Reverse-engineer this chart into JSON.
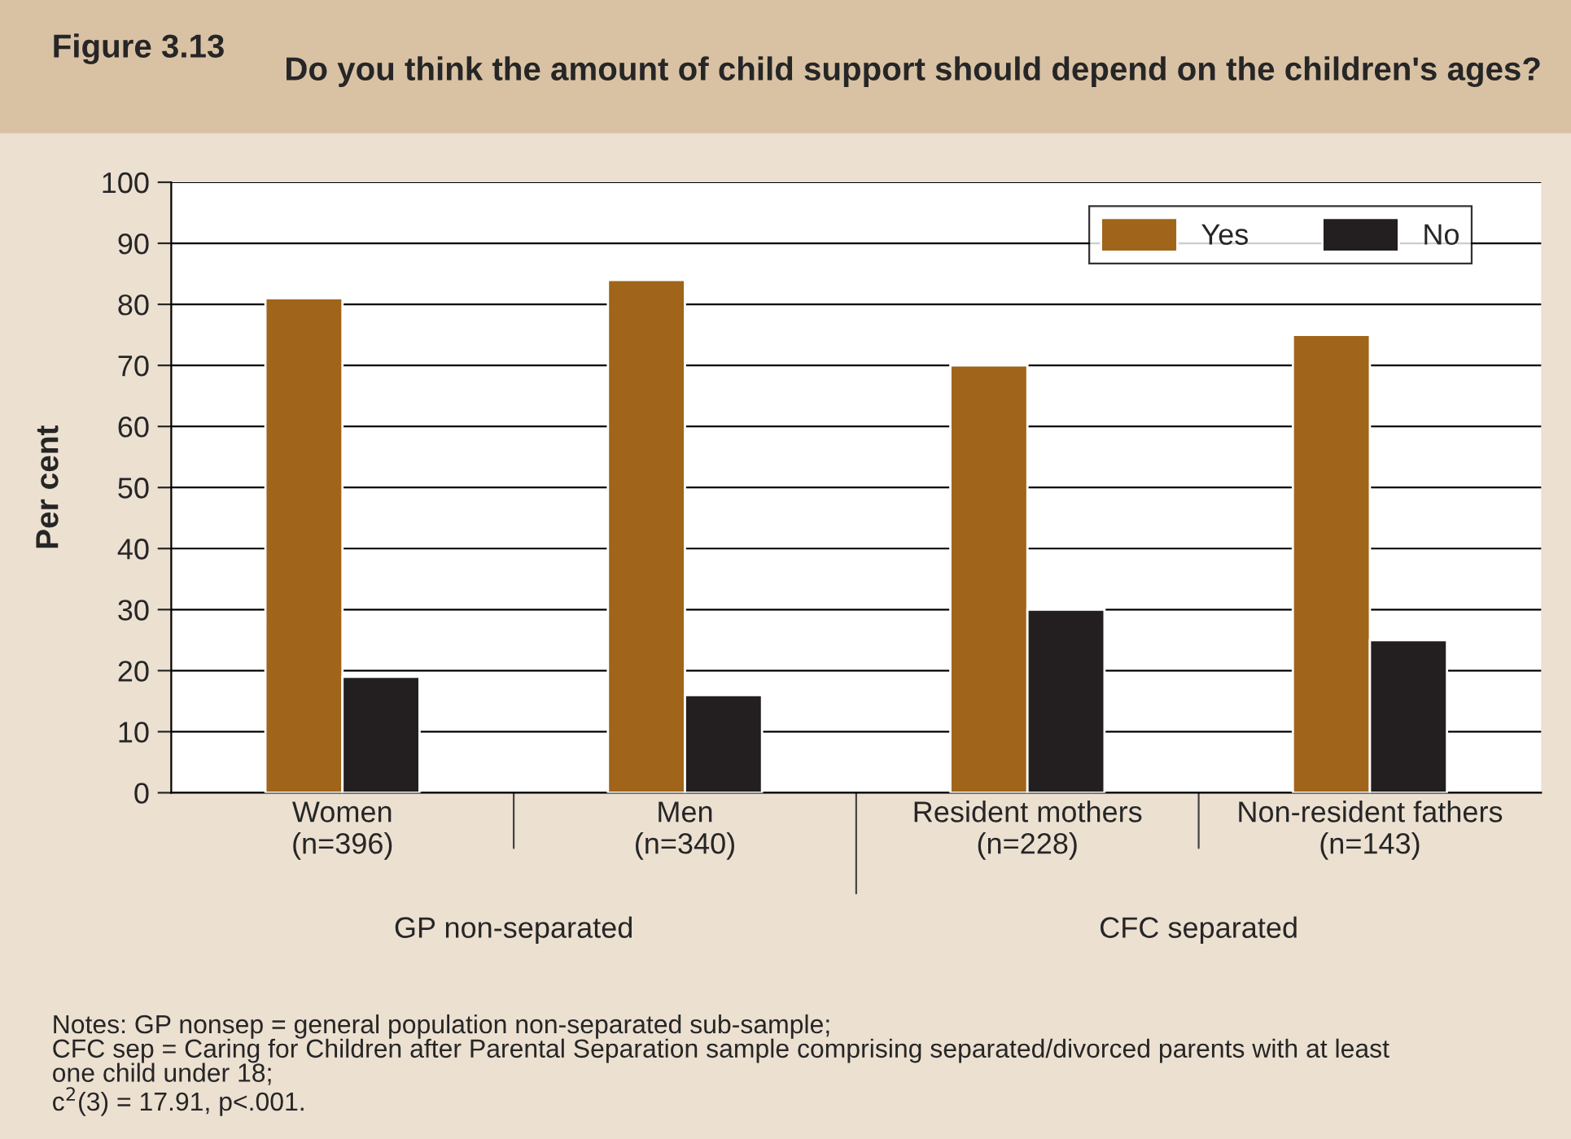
{
  "chart_data": {
    "type": "bar",
    "title": "Figure 3.13",
    "subtitle": "Do you think the amount of child support should depend on the children's ages?",
    "ylabel": "Per cent",
    "categories": [
      "Women\n(n=396)",
      "Men\n(n=340)",
      "Resident mothers\n(n=228)",
      "Non-resident fathers\n(n=143)"
    ],
    "series": [
      {
        "name": "Yes",
        "color": "#a0651a",
        "values": [
          81,
          84,
          70,
          75
        ]
      },
      {
        "name": "No",
        "color": "#231f20",
        "values": [
          19,
          16,
          30,
          25
        ]
      }
    ],
    "ylim": [
      0,
      100
    ],
    "yticks": [
      0,
      10,
      20,
      30,
      40,
      50,
      60,
      70,
      80,
      90,
      100
    ],
    "grid": "y",
    "legend": "top right",
    "annotations": [
      "GP non-separated",
      "CFC separated",
      "Notes: GP nonsep = general population non-separated sub-sample;\nCFC sep = Caring for Children after Parental Separation sample comprising separated/divorced parents with at least\none child under 18;\nc$^{2}$(3) = 17.91, p<.001."
    ]
  }
}
